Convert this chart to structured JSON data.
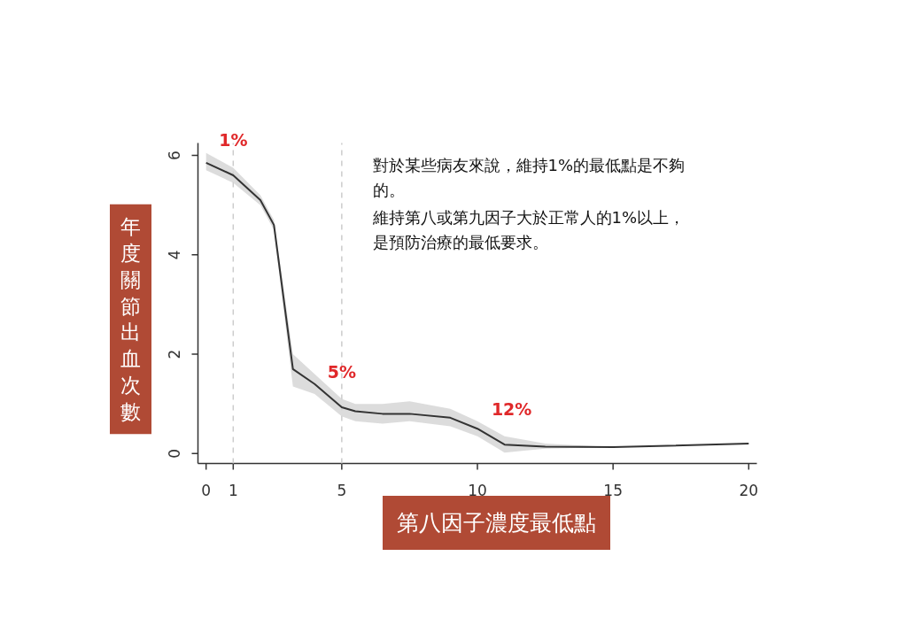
{
  "chart_data": {
    "type": "line",
    "xlabel": "第八因子濃度最低點",
    "ylabel": "年度關節出血次數",
    "x": [
      0,
      1,
      2,
      2.5,
      3.2,
      4,
      5,
      5.5,
      6.5,
      7.5,
      9,
      10,
      11,
      12.5,
      15,
      20
    ],
    "series": [
      {
        "color": "#333333",
        "values": [
          5.85,
          5.6,
          5.1,
          4.6,
          1.7,
          1.4,
          0.93,
          0.85,
          0.8,
          0.8,
          0.72,
          0.5,
          0.18,
          0.14,
          0.13,
          0.2
        ],
        "lower": [
          5.7,
          5.45,
          5.0,
          4.5,
          1.35,
          1.2,
          0.75,
          0.65,
          0.6,
          0.65,
          0.55,
          0.35,
          0.02,
          0.1,
          0.13,
          0.2
        ],
        "upper": [
          6.05,
          5.75,
          5.2,
          4.7,
          2.0,
          1.6,
          1.1,
          1.0,
          1.0,
          1.05,
          0.9,
          0.65,
          0.35,
          0.2,
          0.13,
          0.2
        ]
      }
    ],
    "xlim": [
      -0.3,
      20.3
    ],
    "ylim": [
      -0.2,
      6.25
    ],
    "xticks": [
      0,
      1,
      5,
      10,
      15,
      20
    ],
    "yticks": [
      0,
      2,
      4,
      6
    ],
    "grid": false,
    "line_style": "solid",
    "ref_lines": [
      {
        "axis": "x",
        "value": 1,
        "label": "1%",
        "color": "#cccccc",
        "line_style": "dashed"
      },
      {
        "axis": "x",
        "value": 5,
        "label": "5%",
        "color": "#cccccc",
        "line_style": "dashed"
      }
    ],
    "annotations": [
      {
        "text": "12%",
        "x": 11,
        "y": 0.18
      },
      "對於某些病友來說，維持1%的最低點是不夠的。",
      "維持第八或第九因子大於正常人的1%以上，是預防治療的最低要求。"
    ]
  }
}
